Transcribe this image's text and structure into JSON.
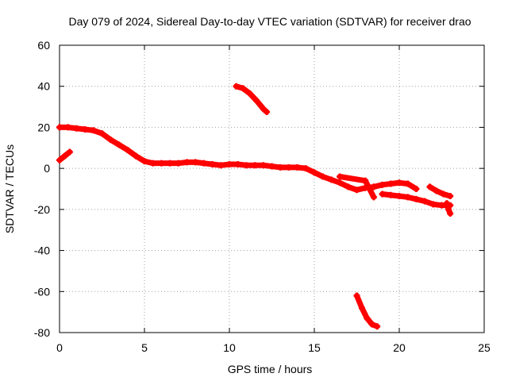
{
  "chart_data": {
    "type": "scatter",
    "title": "Day 079 of 2024, Sidereal Day-to-day VTEC variation (SDTVAR) for receiver drao",
    "xlabel": "GPS time / hours",
    "ylabel": "SDTVAR / TECUs",
    "xlim": [
      0,
      25
    ],
    "ylim": [
      -80,
      60
    ],
    "xticks": [
      0,
      5,
      10,
      15,
      20,
      25
    ],
    "yticks": [
      -80,
      -60,
      -40,
      -20,
      0,
      20,
      40,
      60
    ],
    "grid": true,
    "marker_color": "#ff0000",
    "series": [
      {
        "name": "main_band",
        "x": [
          0.0,
          0.5,
          1.0,
          1.5,
          2.0,
          2.5,
          3.0,
          3.5,
          4.0,
          4.5,
          5.0,
          5.5,
          6.0,
          6.5,
          7.0,
          7.5,
          8.0,
          8.5,
          9.0,
          9.5,
          10.0,
          10.5,
          11.0,
          11.5,
          12.0,
          12.5,
          13.0,
          13.5,
          14.0,
          14.5,
          15.0,
          15.5,
          16.0,
          16.5,
          17.0,
          17.5,
          18.0,
          18.5
        ],
        "y": [
          20,
          20,
          19.5,
          19,
          18.5,
          17,
          14,
          11.5,
          9,
          6,
          3.5,
          2.5,
          2.5,
          2.5,
          2.5,
          3,
          3,
          2.5,
          2,
          1.5,
          2,
          2,
          1.5,
          1.5,
          1.5,
          1,
          0.5,
          0.5,
          0.5,
          0,
          -2,
          -4,
          -5.5,
          -7,
          -9,
          -10.5,
          -9.5,
          -9
        ]
      },
      {
        "name": "short_rise_start",
        "x": [
          0.0,
          0.3,
          0.6
        ],
        "y": [
          4,
          6,
          8
        ]
      },
      {
        "name": "upper_arc",
        "x": [
          10.4,
          10.8,
          11.2,
          11.6,
          12.0,
          12.2
        ],
        "y": [
          40,
          39,
          36.5,
          33,
          29,
          27.5
        ]
      },
      {
        "name": "lower_arc",
        "x": [
          17.5,
          17.8,
          18.1,
          18.4,
          18.7
        ],
        "y": [
          -62,
          -68,
          -73,
          -76,
          -77
        ]
      },
      {
        "name": "late_band",
        "x": [
          18.5,
          19.0,
          19.5,
          20.0,
          20.5,
          21.0
        ],
        "y": [
          -9,
          -8,
          -7.5,
          -7,
          -7.5,
          -10
        ]
      },
      {
        "name": "late_lower_band",
        "x": [
          19.0,
          19.5,
          20.0,
          20.5,
          21.0,
          21.5,
          22.0,
          22.5,
          23.0
        ],
        "y": [
          -12.5,
          -13,
          -13.5,
          -14,
          -15,
          -16,
          -17.5,
          -18,
          -18
        ]
      },
      {
        "name": "late_upper_tail",
        "x": [
          21.8,
          22.2,
          22.6,
          23.0
        ],
        "y": [
          -9,
          -11,
          -12.5,
          -13.5
        ]
      },
      {
        "name": "late_drop_tail",
        "x": [
          22.8,
          22.9,
          23.0
        ],
        "y": [
          -17,
          -20,
          -22
        ]
      },
      {
        "name": "isolated_points",
        "x": [
          16.5,
          18.0,
          18.5
        ],
        "y": [
          -4,
          -6,
          -14
        ]
      }
    ]
  }
}
